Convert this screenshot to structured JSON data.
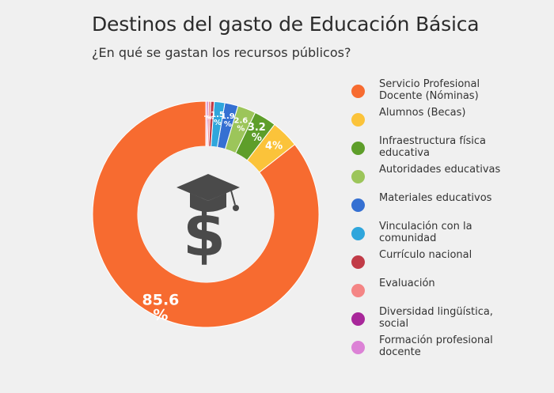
{
  "title": "Destinos del gasto de Educación Básica",
  "subtitle": "¿En qué se gastan los recursos públicos?",
  "icon": "graduation-cap-dollar-icon",
  "chart_data": {
    "type": "pie",
    "style": "donut",
    "title": "Destinos del gasto de Educación Básica",
    "subtitle": "¿En qué se gastan los recursos públicos?",
    "legend_position": "right",
    "series": [
      {
        "name": "Servicio Profesional Docente (Nóminas)",
        "value": 85.6,
        "label": "85.6 %",
        "color": "#f76b30"
      },
      {
        "name": "Alumnos (Becas)",
        "value": 4.0,
        "label": "4%",
        "color": "#fbc33a"
      },
      {
        "name": "Infraestructura física educativa",
        "value": 3.2,
        "label": "3.2 %",
        "color": "#5e9e2a"
      },
      {
        "name": "Autoridades educativas",
        "value": 2.6,
        "label": "2.6 %",
        "color": "#9cc55a"
      },
      {
        "name": "Materiales educativos",
        "value": 1.9,
        "label": "1.9 %",
        "color": "#3570d2"
      },
      {
        "name": "Vinculación con la comunidad",
        "value": 1.5,
        "label": "1.5 %",
        "color": "#2fa6dc"
      },
      {
        "name": "Currículo nacional",
        "value": 0.5,
        "label": "%",
        "color": "#c13b47"
      },
      {
        "name": "Evaluación",
        "value": 0.3,
        "label": "%",
        "color": "#f48585"
      },
      {
        "name": "Diversidad lingüística, social",
        "value": 0.2,
        "label": "%",
        "color": "#a8279a"
      },
      {
        "name": "Formación profesional docente",
        "value": 0.2,
        "label": "%",
        "color": "#dc82d6"
      }
    ]
  }
}
